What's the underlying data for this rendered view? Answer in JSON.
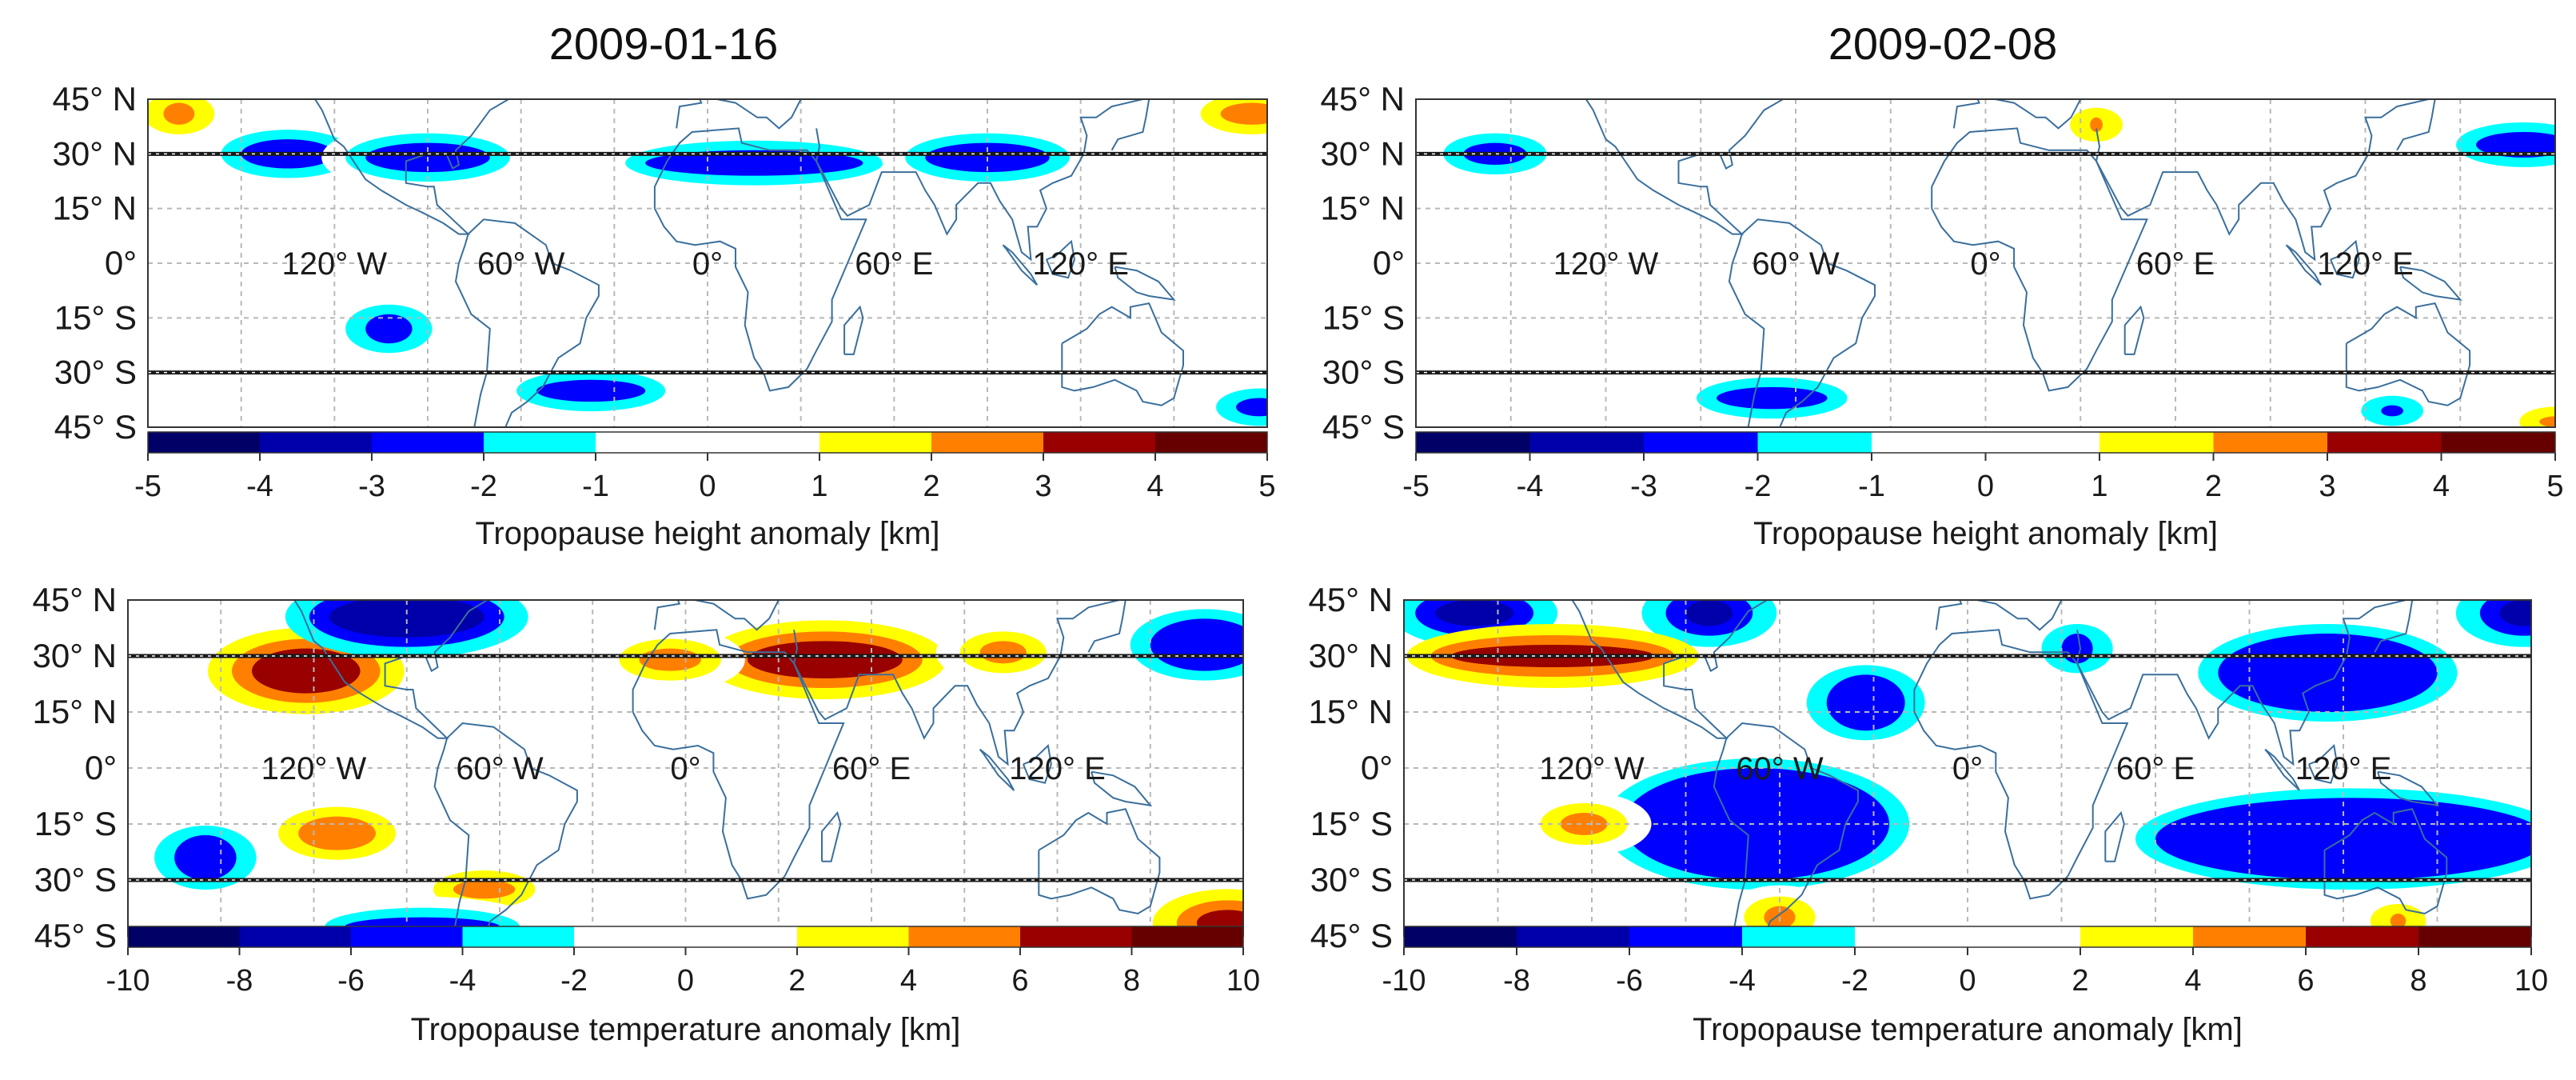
{
  "figure": {
    "dates": [
      "2009-01-16",
      "2009-02-08"
    ],
    "colors": {
      "coast": "#3a6f9c",
      "grid": "#b8b8b8",
      "tropical_line": "#1a1a1a",
      "frame": "#333333"
    }
  },
  "chart_data": [
    {
      "type": "heatmap",
      "id": "height-2009-01-16",
      "title": "2009-01-16",
      "quantity": "Tropopause height anomaly",
      "xlabel": "Tropopause height anomaly [km]",
      "x_tick_labels": [
        "120° W",
        "60° W",
        "0°",
        "60° E",
        "120° E"
      ],
      "y_tick_labels": [
        "45° N",
        "30° N",
        "15° N",
        "0°",
        "15° S",
        "30° S",
        "45° S"
      ],
      "lon_range": [
        -180,
        180
      ],
      "lat_range": [
        -45,
        45
      ],
      "reference_latitudes": [
        30,
        -30
      ],
      "colorbar": {
        "range": [
          -5,
          5
        ],
        "ticks": [
          "-5",
          "-4",
          "-3",
          "-2",
          "-1",
          "0",
          "1",
          "2",
          "3",
          "4",
          "5"
        ],
        "colors": [
          "#000066",
          "#0000aa",
          "#0000ff",
          "#00ffff",
          "#ffffff",
          "#ffffff",
          "#ffff00",
          "#ff8000",
          "#990000",
          "#660000"
        ]
      },
      "anomaly_patches": [
        {
          "lon": [
            -150,
            -120
          ],
          "lat": [
            26,
            34
          ],
          "value": -3
        },
        {
          "lon": [
            -110,
            -70
          ],
          "lat": [
            25,
            33
          ],
          "value": -3
        },
        {
          "lon": [
            -20,
            50
          ],
          "lat": [
            24,
            31
          ],
          "value": -3
        },
        {
          "lon": [
            70,
            110
          ],
          "lat": [
            25,
            33
          ],
          "value": -3
        },
        {
          "lon": [
            -110,
            -95
          ],
          "lat": [
            -22,
            -14
          ],
          "value": -3
        },
        {
          "lon": [
            -55,
            -20
          ],
          "lat": [
            -38,
            -32
          ],
          "value": -3
        },
        {
          "lon": [
            170,
            185
          ],
          "lat": [
            -42,
            -37
          ],
          "value": -3
        },
        {
          "lon": [
            -175,
            -165
          ],
          "lat": [
            38,
            44
          ],
          "value": 2
        },
        {
          "lon": [
            165,
            185
          ],
          "lat": [
            38,
            44
          ],
          "value": 2
        }
      ]
    },
    {
      "type": "heatmap",
      "id": "height-2009-02-08",
      "title": "2009-02-08",
      "quantity": "Tropopause height anomaly",
      "xlabel": "Tropopause height anomaly [km]",
      "x_tick_labels": [
        "120° W",
        "60° W",
        "0°",
        "60° E",
        "120° E"
      ],
      "y_tick_labels": [
        "45° N",
        "30° N",
        "15° N",
        "0°",
        "15° S",
        "30° S",
        "45° S"
      ],
      "lon_range": [
        -180,
        180
      ],
      "lat_range": [
        -45,
        45
      ],
      "reference_latitudes": [
        30,
        -30
      ],
      "colorbar": {
        "range": [
          -5,
          5
        ],
        "ticks": [
          "-5",
          "-4",
          "-3",
          "-2",
          "-1",
          "0",
          "1",
          "2",
          "3",
          "4",
          "5"
        ],
        "colors": [
          "#000066",
          "#0000aa",
          "#0000ff",
          "#00ffff",
          "#ffffff",
          "#ffffff",
          "#ffff00",
          "#ff8000",
          "#990000",
          "#660000"
        ]
      },
      "anomaly_patches": [
        {
          "lon": [
            -165,
            -145
          ],
          "lat": [
            27,
            33
          ],
          "value": -3
        },
        {
          "lon": [
            155,
            185
          ],
          "lat": [
            29,
            36
          ],
          "value": -3
        },
        {
          "lon": [
            -85,
            -50
          ],
          "lat": [
            -40,
            -34
          ],
          "value": -3
        },
        {
          "lon": [
            125,
            132
          ],
          "lat": [
            -42,
            -39
          ],
          "value": -3
        },
        {
          "lon": [
            33,
            37
          ],
          "lat": [
            36,
            40
          ],
          "value": 2
        },
        {
          "lon": [
            175,
            185
          ],
          "lat": [
            -45,
            -42
          ],
          "value": 2
        }
      ]
    },
    {
      "type": "heatmap",
      "id": "temperature-2009-01-16",
      "title": "2009-01-16",
      "quantity": "Tropopause temperature anomaly",
      "xlabel": "Tropopause temperature anomaly [km]",
      "x_tick_labels": [
        "120° W",
        "60° W",
        "0°",
        "60° E",
        "120° E"
      ],
      "y_tick_labels": [
        "45° N",
        "30° N",
        "15° N",
        "0°",
        "15° S",
        "30° S",
        "45° S"
      ],
      "lon_range": [
        -180,
        180
      ],
      "lat_range": [
        -45,
        45
      ],
      "reference_latitudes": [
        30,
        -30
      ],
      "colorbar": {
        "range": [
          -10,
          10
        ],
        "ticks": [
          "-10",
          "-8",
          "-6",
          "-4",
          "-2",
          "0",
          "2",
          "4",
          "6",
          "8",
          "10"
        ],
        "colors": [
          "#000066",
          "#0000aa",
          "#0000ff",
          "#00ffff",
          "#ffffff",
          "#ffffff",
          "#ffff00",
          "#ff8000",
          "#990000",
          "#660000"
        ]
      },
      "anomaly_patches": [
        {
          "lon": [
            -140,
            -105
          ],
          "lat": [
            20,
            32
          ],
          "value": 7
        },
        {
          "lon": [
            20,
            70
          ],
          "lat": [
            24,
            34
          ],
          "value": 7
        },
        {
          "lon": [
            95,
            110
          ],
          "lat": [
            28,
            34
          ],
          "value": 5
        },
        {
          "lon": [
            -15,
            5
          ],
          "lat": [
            26,
            32
          ],
          "value": 5
        },
        {
          "lon": [
            -125,
            -100
          ],
          "lat": [
            -22,
            -13
          ],
          "value": 5
        },
        {
          "lon": [
            -75,
            -55
          ],
          "lat": [
            -35,
            -30
          ],
          "value": 5
        },
        {
          "lon": [
            165,
            185
          ],
          "lat": [
            -45,
            -38
          ],
          "value": 7
        },
        {
          "lon": [
            -115,
            -65
          ],
          "lat": [
            35,
            46
          ],
          "value": -7
        },
        {
          "lon": [
            150,
            185
          ],
          "lat": [
            26,
            40
          ],
          "value": -5
        },
        {
          "lon": [
            -165,
            -145
          ],
          "lat": [
            -30,
            -18
          ],
          "value": -5
        },
        {
          "lon": [
            -110,
            -60
          ],
          "lat": [
            -45,
            -40
          ],
          "value": -5
        }
      ]
    },
    {
      "type": "heatmap",
      "id": "temperature-2009-02-08",
      "title": "2009-02-08",
      "quantity": "Tropopause temperature anomaly",
      "xlabel": "Tropopause temperature anomaly [km]",
      "x_tick_labels": [
        "120° W",
        "60° W",
        "0°",
        "60° E",
        "120° E"
      ],
      "y_tick_labels": [
        "45° N",
        "30° N",
        "15° N",
        "0°",
        "15° S",
        "30° S",
        "45° S"
      ],
      "lon_range": [
        -180,
        180
      ],
      "lat_range": [
        -45,
        45
      ],
      "reference_latitudes": [
        30,
        -30
      ],
      "colorbar": {
        "range": [
          -10,
          10
        ],
        "ticks": [
          "-10",
          "-8",
          "-6",
          "-4",
          "-2",
          "0",
          "2",
          "4",
          "6",
          "8",
          "10"
        ],
        "colors": [
          "#000066",
          "#0000aa",
          "#0000ff",
          "#00ffff",
          "#ffffff",
          "#ffffff",
          "#ffff00",
          "#ff8000",
          "#990000",
          "#660000"
        ]
      },
      "anomaly_patches": [
        {
          "lon": [
            -170,
            -145
          ],
          "lat": [
            38,
            45
          ],
          "value": -7
        },
        {
          "lon": [
            -90,
            -75
          ],
          "lat": [
            38,
            45
          ],
          "value": -7
        },
        {
          "lon": [
            -45,
            -20
          ],
          "lat": [
            10,
            25
          ],
          "value": -5
        },
        {
          "lon": [
            -110,
            -25
          ],
          "lat": [
            -30,
            0
          ],
          "value": -5
        },
        {
          "lon": [
            30,
            40
          ],
          "lat": [
            28,
            36
          ],
          "value": -5
        },
        {
          "lon": [
            80,
            150
          ],
          "lat": [
            15,
            36
          ],
          "value": -5
        },
        {
          "lon": [
            60,
            185
          ],
          "lat": [
            -30,
            -8
          ],
          "value": -5
        },
        {
          "lon": [
            170,
            185
          ],
          "lat": [
            38,
            45
          ],
          "value": -7
        },
        {
          "lon": [
            -165,
            -100
          ],
          "lat": [
            27,
            33
          ],
          "value": 7
        },
        {
          "lon": [
            -130,
            -115
          ],
          "lat": [
            -18,
            -12
          ],
          "value": 5
        },
        {
          "lon": [
            -65,
            -55
          ],
          "lat": [
            -43,
            -37
          ],
          "value": 5
        },
        {
          "lon": [
            135,
            140
          ],
          "lat": [
            -43,
            -39
          ],
          "value": 5
        }
      ]
    }
  ]
}
